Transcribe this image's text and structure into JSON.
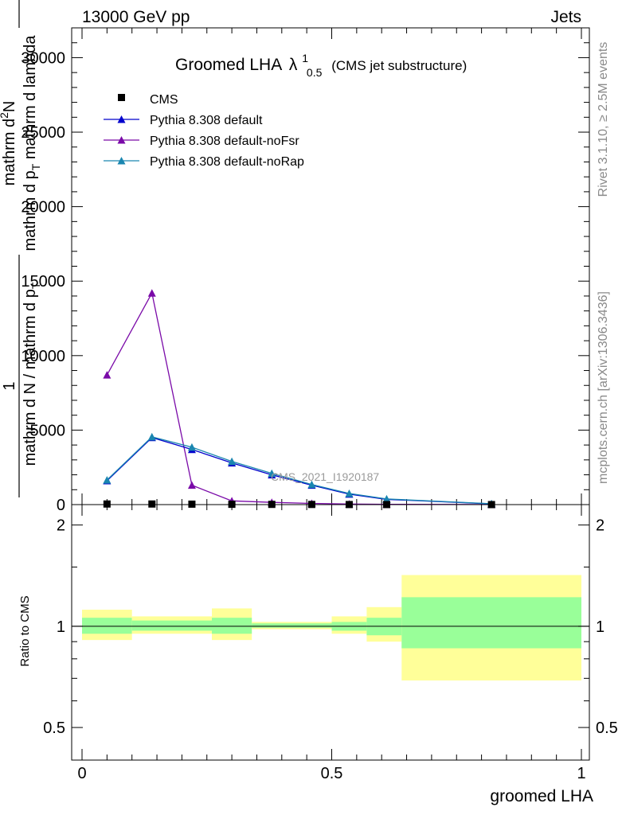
{
  "header": {
    "left": "13000 GeV pp",
    "right": "Jets"
  },
  "side_labels": {
    "rivet": "Rivet 3.1.10, ≥ 2.5M events",
    "mcplots": "mcplots.cern.ch [arXiv:1306.3436]"
  },
  "watermark": "CMS_2021_I1920187",
  "colors": {
    "cms": "#000000",
    "default": "#0000cc",
    "noFsr": "#7a0aa8",
    "noRap": "#1a86b0",
    "band_inner": "#99ff99",
    "band_outer": "#ffff99"
  },
  "chart_data": [
    {
      "type": "line",
      "title": "Groomed LHA",
      "title_symbol": "λ",
      "title_sup": "1",
      "title_sub": "0.5",
      "subtitle": "(CMS jet substructure)",
      "ylabel_parts": {
        "numerator": "1",
        "denominator": "mathrm d N / mathrm d p",
        "denominator_sub": "T",
        "right_numerator": "mathrm d",
        "right_numerator_sup": "2",
        "right_numerator_tail": "N",
        "right_denominator": "mathrm d p",
        "right_denominator_sub": "T",
        "right_denominator_tail": " mathrm d lambda"
      },
      "ylim": [
        0,
        32000
      ],
      "yticks": [
        0,
        5000,
        10000,
        15000,
        20000,
        25000,
        30000
      ],
      "ytick_labels": [
        "0",
        "5000",
        "10000",
        "15000",
        "20000",
        "25000",
        "30000"
      ],
      "xlim": [
        0,
        1
      ],
      "legend_position": "top-left",
      "series": [
        {
          "name": "CMS",
          "marker": "square",
          "x": [
            0.05,
            0.14,
            0.22,
            0.3,
            0.38,
            0.46,
            0.535,
            0.61,
            0.82
          ],
          "y": [
            40,
            40,
            30,
            20,
            15,
            10,
            5,
            3,
            1
          ]
        },
        {
          "name": "Pythia 8.308 default",
          "marker": "triangle",
          "x": [
            0.05,
            0.14,
            0.22,
            0.3,
            0.38,
            0.46,
            0.535,
            0.61,
            0.82
          ],
          "y": [
            1600,
            4500,
            3700,
            2800,
            2000,
            1300,
            700,
            350,
            50
          ]
        },
        {
          "name": "Pythia 8.308 default-noFsr",
          "marker": "triangle",
          "x": [
            0.05,
            0.14,
            0.22,
            0.3,
            0.38,
            0.46,
            0.535,
            0.61,
            0.82
          ],
          "y": [
            8700,
            14200,
            1300,
            250,
            150,
            80,
            40,
            20,
            5
          ]
        },
        {
          "name": "Pythia 8.308 default-noRap",
          "marker": "triangle",
          "x": [
            0.05,
            0.14,
            0.22,
            0.3,
            0.38,
            0.46,
            0.535,
            0.61,
            0.82
          ],
          "y": [
            1650,
            4550,
            3850,
            2900,
            2100,
            1350,
            750,
            380,
            60
          ]
        }
      ]
    },
    {
      "type": "area",
      "ylabel": "Ratio to CMS",
      "xlabel": "groomed LHA",
      "xlim": [
        0,
        1
      ],
      "ylim": [
        0.4,
        2.3
      ],
      "y_log": true,
      "yticks": [
        0.5,
        1,
        2
      ],
      "ytick_labels": [
        "0.5",
        "1",
        "2"
      ],
      "xticks": [
        0,
        0.5,
        1
      ],
      "xtick_labels": [
        "0",
        "0.5",
        "1"
      ],
      "reference_line": 1,
      "bins": [
        {
          "x0": 0.0,
          "x1": 0.1,
          "inner": [
            0.95,
            1.06
          ],
          "outer": [
            0.91,
            1.12
          ]
        },
        {
          "x0": 0.1,
          "x1": 0.26,
          "inner": [
            0.97,
            1.04
          ],
          "outer": [
            0.95,
            1.07
          ]
        },
        {
          "x0": 0.26,
          "x1": 0.34,
          "inner": [
            0.95,
            1.06
          ],
          "outer": [
            0.91,
            1.13
          ]
        },
        {
          "x0": 0.34,
          "x1": 0.5,
          "inner": [
            0.99,
            1.02
          ],
          "outer": [
            0.98,
            1.03
          ]
        },
        {
          "x0": 0.5,
          "x1": 0.57,
          "inner": [
            0.97,
            1.03
          ],
          "outer": [
            0.95,
            1.07
          ]
        },
        {
          "x0": 0.57,
          "x1": 0.64,
          "inner": [
            0.94,
            1.06
          ],
          "outer": [
            0.9,
            1.14
          ]
        },
        {
          "x0": 0.64,
          "x1": 1.0,
          "inner": [
            0.86,
            1.22
          ],
          "outer": [
            0.69,
            1.42
          ]
        }
      ]
    }
  ]
}
